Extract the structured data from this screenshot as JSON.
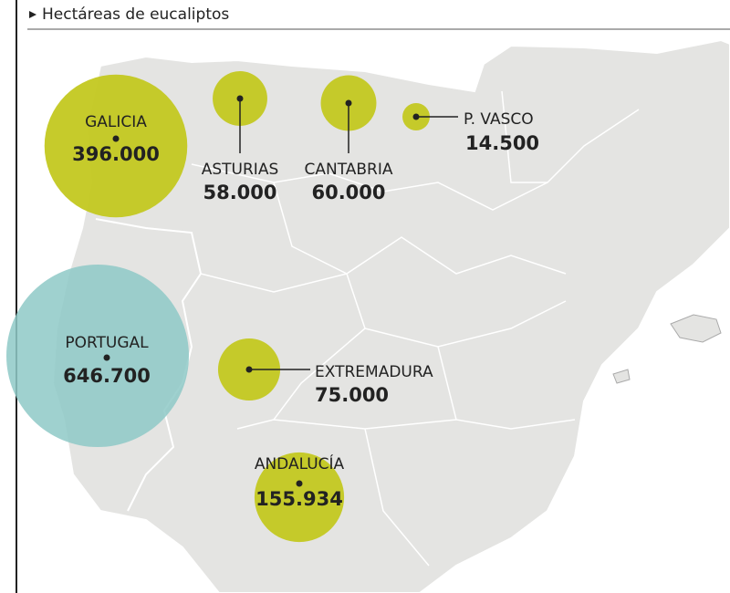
{
  "title": "Hectáreas de eucaliptos",
  "regions": [
    {
      "name": "GALICIA",
      "value": 396000,
      "value_label": "396.000",
      "color": "#c3c820"
    },
    {
      "name": "ASTURIAS",
      "value": 58000,
      "value_label": "58.000",
      "color": "#c3c820"
    },
    {
      "name": "CANTABRIA",
      "value": 60000,
      "value_label": "60.000",
      "color": "#c3c820"
    },
    {
      "name": "P. VASCO",
      "value": 14500,
      "value_label": "14.500",
      "color": "#c3c820"
    },
    {
      "name": "PORTUGAL",
      "value": 646700,
      "value_label": "646.700",
      "color": "#8ec9c7"
    },
    {
      "name": "EXTREMADURA",
      "value": 75000,
      "value_label": "75.000",
      "color": "#c3c820"
    },
    {
      "name": "ANDALUCÍA",
      "value": 155934,
      "value_label": "155.934",
      "color": "#c3c820"
    }
  ]
}
